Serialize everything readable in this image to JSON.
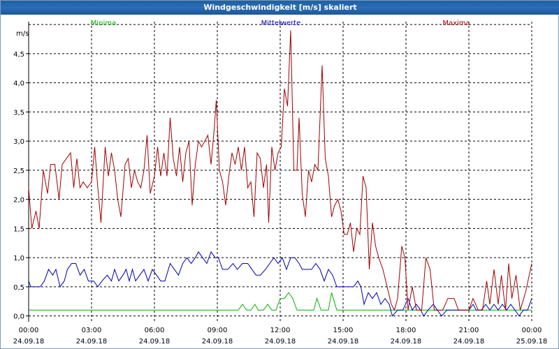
{
  "window": {
    "title": "Windgeschwindigkeit [m/s] skaliert"
  },
  "chart_data": {
    "type": "line",
    "title": "Windgeschwindigkeit [m/s] skaliert",
    "ylabel": "m/s",
    "ylim": [
      -0.1,
      5.05
    ],
    "xlim": [
      0,
      24
    ],
    "grid": true,
    "x_unit": "hours after 24.09.18 00:00",
    "y_ticks": [
      "0,0",
      "0,5",
      "1,0",
      "1,5",
      "2,0",
      "2,5",
      "3,0",
      "3,5",
      "4,0",
      "4,5"
    ],
    "y_tick_values": [
      0,
      0.5,
      1.0,
      1.5,
      2.0,
      2.5,
      3.0,
      3.5,
      4.0,
      4.5
    ],
    "x_ticks": [
      {
        "time": "00:00",
        "date": "24.09.18"
      },
      {
        "time": "03:00",
        "date": "24.09.18"
      },
      {
        "time": "06:00",
        "date": "24.09.18"
      },
      {
        "time": "09:00",
        "date": "24.09.18"
      },
      {
        "time": "12:00",
        "date": "24.09.18"
      },
      {
        "time": "15:00",
        "date": "24.09.18"
      },
      {
        "time": "18:00",
        "date": "24.09.18"
      },
      {
        "time": "21:00",
        "date": "24.09.18"
      },
      {
        "time": "00:00",
        "date": "25.09.18"
      }
    ],
    "series": [
      {
        "name": "Minima",
        "color": "#00b000",
        "points": [
          [
            0,
            0.1
          ],
          [
            10,
            0.1
          ],
          [
            10.2,
            0.2
          ],
          [
            10.4,
            0.1
          ],
          [
            10.6,
            0.1
          ],
          [
            10.8,
            0.2
          ],
          [
            10.95,
            0.1
          ],
          [
            11.2,
            0.1
          ],
          [
            11.4,
            0.2
          ],
          [
            11.6,
            0.1
          ],
          [
            11.8,
            0.1
          ],
          [
            12.0,
            0.3
          ],
          [
            12.2,
            0.3
          ],
          [
            12.4,
            0.4
          ],
          [
            12.6,
            0.3
          ],
          [
            12.8,
            0.1
          ],
          [
            13.6,
            0.1
          ],
          [
            13.75,
            0.3
          ],
          [
            13.95,
            0.1
          ],
          [
            14.3,
            0.1
          ],
          [
            14.45,
            0.4
          ],
          [
            14.7,
            0.1
          ],
          [
            24,
            0.1
          ]
        ]
      },
      {
        "name": "Mittelwerte",
        "color": "#0000b0",
        "points": [
          [
            0,
            0.6
          ],
          [
            0.1,
            0.5
          ],
          [
            0.3,
            0.5
          ],
          [
            0.55,
            0.5
          ],
          [
            0.75,
            0.6
          ],
          [
            0.95,
            0.8
          ],
          [
            1.15,
            0.7
          ],
          [
            1.3,
            0.8
          ],
          [
            1.5,
            0.5
          ],
          [
            1.7,
            0.6
          ],
          [
            1.85,
            0.8
          ],
          [
            2.05,
            0.9
          ],
          [
            2.25,
            0.9
          ],
          [
            2.45,
            0.7
          ],
          [
            2.65,
            0.8
          ],
          [
            2.85,
            0.6
          ],
          [
            3.1,
            0.6
          ],
          [
            3.3,
            0.5
          ],
          [
            3.5,
            0.6
          ],
          [
            3.75,
            0.7
          ],
          [
            3.95,
            0.6
          ],
          [
            4.1,
            0.8
          ],
          [
            4.3,
            0.6
          ],
          [
            4.5,
            0.7
          ],
          [
            4.65,
            0.8
          ],
          [
            4.8,
            0.6
          ],
          [
            4.95,
            0.8
          ],
          [
            5.1,
            0.6
          ],
          [
            5.3,
            0.7
          ],
          [
            5.5,
            0.8
          ],
          [
            5.7,
            0.6
          ],
          [
            5.9,
            0.8
          ],
          [
            6.1,
            0.7
          ],
          [
            6.3,
            0.6
          ],
          [
            6.5,
            0.6
          ],
          [
            6.75,
            0.9
          ],
          [
            6.95,
            0.8
          ],
          [
            7.15,
            0.7
          ],
          [
            7.35,
            0.9
          ],
          [
            7.55,
            1.0
          ],
          [
            7.75,
            0.9
          ],
          [
            7.95,
            1.0
          ],
          [
            8.1,
            1.1
          ],
          [
            8.3,
            1.0
          ],
          [
            8.5,
            0.9
          ],
          [
            8.7,
            1.1
          ],
          [
            8.9,
            1.0
          ],
          [
            9.05,
            1.0
          ],
          [
            9.25,
            0.8
          ],
          [
            9.5,
            0.8
          ],
          [
            9.75,
            0.9
          ],
          [
            9.95,
            0.8
          ],
          [
            10.2,
            0.9
          ],
          [
            10.45,
            0.9
          ],
          [
            10.65,
            0.8
          ],
          [
            10.85,
            0.7
          ],
          [
            11.05,
            0.7
          ],
          [
            11.3,
            0.8
          ],
          [
            11.5,
            0.9
          ],
          [
            11.7,
            1.0
          ],
          [
            11.9,
            0.9
          ],
          [
            12.1,
            1.0
          ],
          [
            12.3,
            0.8
          ],
          [
            12.5,
            1.0
          ],
          [
            12.7,
            1.0
          ],
          [
            12.9,
            0.9
          ],
          [
            13.05,
            0.8
          ],
          [
            13.25,
            0.8
          ],
          [
            13.5,
            0.8
          ],
          [
            13.7,
            0.9
          ],
          [
            13.9,
            0.8
          ],
          [
            14.1,
            0.6
          ],
          [
            14.3,
            0.8
          ],
          [
            14.5,
            0.7
          ],
          [
            14.7,
            0.5
          ],
          [
            14.9,
            0.5
          ],
          [
            15.1,
            0.5
          ],
          [
            15.3,
            0.5
          ],
          [
            15.5,
            0.5
          ],
          [
            15.7,
            0.6
          ],
          [
            15.85,
            0.5
          ],
          [
            16.0,
            0.2
          ],
          [
            16.2,
            0.4
          ],
          [
            16.4,
            0.3
          ],
          [
            16.6,
            0.4
          ],
          [
            16.8,
            0.2
          ],
          [
            17.0,
            0.3
          ],
          [
            17.2,
            0.2
          ],
          [
            17.35,
            0.0
          ],
          [
            17.6,
            0.1
          ],
          [
            17.85,
            0.1
          ],
          [
            18.1,
            0.3
          ],
          [
            18.3,
            0.1
          ],
          [
            18.5,
            0.2
          ],
          [
            18.7,
            0.1
          ],
          [
            18.85,
            0.0
          ],
          [
            19.05,
            0.1
          ],
          [
            19.3,
            0.2
          ],
          [
            19.5,
            0.1
          ],
          [
            19.7,
            0.0
          ],
          [
            19.95,
            0.1
          ],
          [
            21.0,
            0.1
          ],
          [
            21.2,
            0.2
          ],
          [
            21.35,
            0.1
          ],
          [
            21.6,
            0.1
          ],
          [
            21.8,
            0.2
          ],
          [
            22.0,
            0.1
          ],
          [
            22.2,
            0.2
          ],
          [
            22.4,
            0.1
          ],
          [
            22.6,
            0.2
          ],
          [
            22.8,
            0.1
          ],
          [
            23.0,
            0.2
          ],
          [
            23.2,
            0.1
          ],
          [
            23.4,
            0.0
          ],
          [
            23.6,
            0.1
          ],
          [
            23.8,
            0.1
          ],
          [
            24.0,
            0.3
          ]
        ]
      },
      {
        "name": "Maxima",
        "color": "#a00000",
        "points": [
          [
            0,
            2.2
          ],
          [
            0.15,
            1.5
          ],
          [
            0.35,
            1.8
          ],
          [
            0.5,
            1.5
          ],
          [
            0.7,
            2.5
          ],
          [
            0.9,
            2.1
          ],
          [
            1.05,
            2.6
          ],
          [
            1.25,
            2.6
          ],
          [
            1.45,
            2.0
          ],
          [
            1.6,
            2.6
          ],
          [
            1.8,
            2.7
          ],
          [
            2.0,
            2.8
          ],
          [
            2.15,
            2.2
          ],
          [
            2.3,
            2.7
          ],
          [
            2.45,
            2.2
          ],
          [
            2.6,
            2.3
          ],
          [
            2.8,
            2.2
          ],
          [
            3.0,
            2.3
          ],
          [
            3.15,
            2.9
          ],
          [
            3.3,
            2.2
          ],
          [
            3.45,
            1.6
          ],
          [
            3.65,
            2.9
          ],
          [
            3.8,
            2.4
          ],
          [
            3.95,
            2.8
          ],
          [
            4.1,
            2.5
          ],
          [
            4.25,
            2.0
          ],
          [
            4.4,
            1.7
          ],
          [
            4.6,
            2.6
          ],
          [
            4.75,
            2.7
          ],
          [
            4.9,
            2.2
          ],
          [
            5.05,
            2.5
          ],
          [
            5.2,
            2.3
          ],
          [
            5.35,
            2.2
          ],
          [
            5.5,
            2.5
          ],
          [
            5.65,
            3.1
          ],
          [
            5.8,
            2.1
          ],
          [
            6.0,
            2.4
          ],
          [
            6.15,
            2.9
          ],
          [
            6.3,
            2.4
          ],
          [
            6.45,
            2.8
          ],
          [
            6.6,
            2.4
          ],
          [
            6.75,
            3.4
          ],
          [
            6.9,
            2.7
          ],
          [
            7.05,
            2.4
          ],
          [
            7.2,
            2.9
          ],
          [
            7.35,
            2.3
          ],
          [
            7.5,
            2.8
          ],
          [
            7.65,
            3.0
          ],
          [
            7.8,
            1.9
          ],
          [
            7.95,
            2.6
          ],
          [
            8.1,
            3.0
          ],
          [
            8.25,
            2.9
          ],
          [
            8.4,
            3.0
          ],
          [
            8.55,
            3.1
          ],
          [
            8.7,
            2.6
          ],
          [
            8.85,
            3.2
          ],
          [
            8.95,
            3.7
          ],
          [
            9.1,
            2.5
          ],
          [
            9.25,
            2.3
          ],
          [
            9.4,
            1.9
          ],
          [
            9.55,
            2.4
          ],
          [
            9.7,
            2.8
          ],
          [
            9.85,
            2.6
          ],
          [
            10.0,
            2.9
          ],
          [
            10.15,
            2.5
          ],
          [
            10.3,
            2.9
          ],
          [
            10.45,
            2.2
          ],
          [
            10.6,
            2.3
          ],
          [
            10.75,
            1.7
          ],
          [
            10.9,
            2.8
          ],
          [
            11.05,
            2.7
          ],
          [
            11.2,
            2.2
          ],
          [
            11.35,
            2.6
          ],
          [
            11.45,
            1.6
          ],
          [
            11.6,
            2.9
          ],
          [
            11.75,
            2.5
          ],
          [
            11.9,
            2.8
          ],
          [
            12.05,
            2.9
          ],
          [
            12.2,
            3.9
          ],
          [
            12.35,
            3.6
          ],
          [
            12.5,
            4.9
          ],
          [
            12.65,
            2.5
          ],
          [
            12.8,
            2.5
          ],
          [
            12.9,
            3.4
          ],
          [
            13.05,
            2.1
          ],
          [
            13.2,
            1.7
          ],
          [
            13.35,
            2.5
          ],
          [
            13.5,
            2.3
          ],
          [
            13.65,
            2.6
          ],
          [
            13.8,
            2.5
          ],
          [
            14.0,
            4.3
          ],
          [
            14.15,
            2.7
          ],
          [
            14.3,
            2.4
          ],
          [
            14.45,
            1.7
          ],
          [
            14.6,
            1.9
          ],
          [
            14.75,
            2.0
          ],
          [
            14.9,
            1.8
          ],
          [
            15.05,
            1.4
          ],
          [
            15.2,
            1.4
          ],
          [
            15.35,
            1.6
          ],
          [
            15.5,
            1.1
          ],
          [
            15.65,
            1.5
          ],
          [
            15.8,
            1.4
          ],
          [
            15.95,
            2.4
          ],
          [
            16.1,
            2.2
          ],
          [
            16.25,
            0.8
          ],
          [
            16.4,
            1.6
          ],
          [
            16.55,
            1.2
          ],
          [
            16.7,
            1.0
          ],
          [
            16.9,
            0.8
          ],
          [
            17.1,
            0.5
          ],
          [
            17.3,
            0.2
          ],
          [
            17.45,
            0.1
          ],
          [
            17.6,
            0.3
          ],
          [
            17.8,
            1.2
          ],
          [
            17.95,
            1.0
          ],
          [
            18.1,
            0.1
          ],
          [
            18.3,
            0.5
          ],
          [
            18.5,
            0.1
          ],
          [
            18.75,
            0.1
          ],
          [
            18.95,
            1.0
          ],
          [
            19.15,
            0.8
          ],
          [
            19.35,
            0.1
          ],
          [
            19.55,
            0.1
          ],
          [
            19.75,
            0.1
          ],
          [
            20.0,
            0.3
          ],
          [
            20.3,
            0.3
          ],
          [
            20.5,
            0.1
          ],
          [
            20.8,
            0.1
          ],
          [
            21.0,
            0.1
          ],
          [
            21.2,
            0.3
          ],
          [
            21.45,
            0.1
          ],
          [
            21.65,
            0.1
          ],
          [
            21.85,
            0.6
          ],
          [
            22.0,
            0.2
          ],
          [
            22.2,
            0.8
          ],
          [
            22.4,
            0.2
          ],
          [
            22.55,
            0.7
          ],
          [
            22.75,
            0.1
          ],
          [
            22.9,
            0.9
          ],
          [
            23.05,
            0.3
          ],
          [
            23.25,
            0.7
          ],
          [
            23.45,
            0.1
          ],
          [
            23.7,
            0.4
          ],
          [
            24.0,
            0.9
          ]
        ]
      }
    ]
  }
}
